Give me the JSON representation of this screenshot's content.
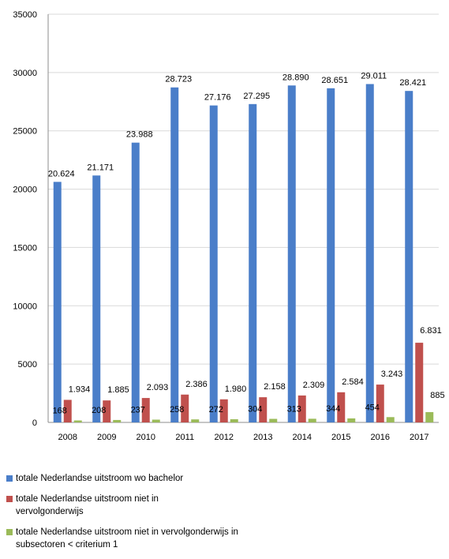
{
  "chart_data": {
    "type": "bar",
    "title": "",
    "xlabel": "",
    "ylabel": "",
    "ylim": [
      0,
      35000
    ],
    "yticks": [
      0,
      5000,
      10000,
      15000,
      20000,
      25000,
      30000,
      35000
    ],
    "grid": "horizontal",
    "legend_position": "bottom",
    "categories": [
      "2008",
      "2009",
      "2010",
      "2011",
      "2012",
      "2013",
      "2014",
      "2015",
      "2016",
      "2017"
    ],
    "series": [
      {
        "name": "totale Nederlandse uitstroom wo bachelor",
        "color": "#4a7ec9",
        "values": [
          20624,
          21171,
          23988,
          28723,
          27176,
          27295,
          28890,
          28651,
          29011,
          28421
        ],
        "labels": [
          "20.624",
          "21.171",
          "23.988",
          "28.723",
          "27.176",
          "27.295",
          "28.890",
          "28.651",
          "29.011",
          "28.421"
        ]
      },
      {
        "name": "totale Nederlandse uitstroom niet in vervolgonderwijs",
        "color": "#c0504d",
        "values": [
          1934,
          1885,
          2093,
          2386,
          1980,
          2158,
          2309,
          2584,
          3243,
          6831
        ],
        "labels": [
          "1.934",
          "1.885",
          "2.093",
          "2.386",
          "1.980",
          "2.158",
          "2.309",
          "2.584",
          "3.243",
          "6.831"
        ]
      },
      {
        "name": "totale Nederlandse uitstroom niet in vervolgonderwijs in subsectoren < criterium 1",
        "color": "#9bbb59",
        "values": [
          168,
          208,
          237,
          258,
          272,
          304,
          313,
          344,
          454,
          885
        ],
        "labels": [
          "168",
          "208",
          "237",
          "258",
          "272",
          "304",
          "313",
          "344",
          "454",
          "885"
        ]
      }
    ]
  },
  "legend": {
    "items": [
      {
        "label": "totale Nederlandse uitstroom wo bachelor",
        "color": "#4a7ec9"
      },
      {
        "label": "totale Nederlandse uitstroom niet in vervolgonderwijs",
        "color": "#c0504d"
      },
      {
        "label": "totale Nederlandse uitstroom niet in vervolgonderwijs in subsectoren < criterium 1",
        "color": "#9bbb59"
      }
    ]
  }
}
